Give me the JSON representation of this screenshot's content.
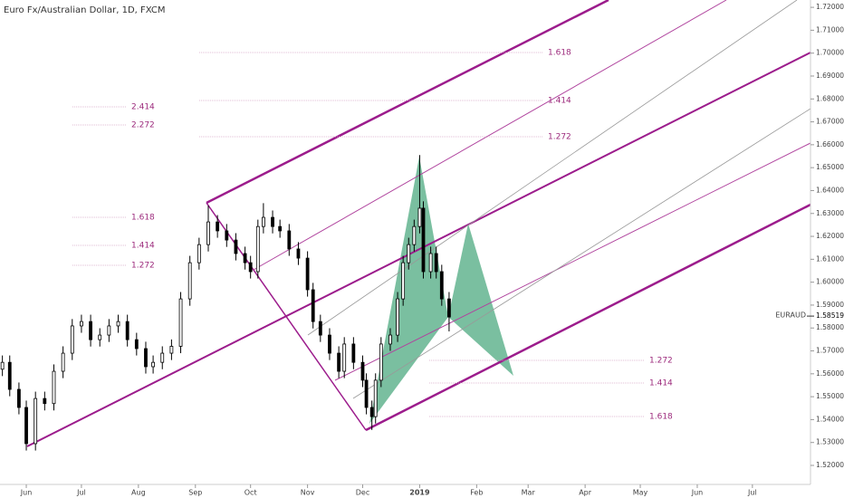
{
  "chart_data": {
    "type": "candlestick",
    "title": "Euro Fx/Australian Dollar, 1D, FXCM",
    "symbol": "EURAUD",
    "last_price": 1.58519,
    "x": [
      -13,
      -9,
      -4,
      0,
      5,
      10,
      15,
      20,
      25,
      30,
      35,
      40,
      45,
      50,
      55,
      60,
      65,
      69,
      74,
      79,
      84,
      89,
      94,
      99,
      104,
      109,
      114,
      119,
      122,
      126,
      129,
      134,
      138,
      143,
      148,
      153,
      156,
      160,
      165,
      170,
      173,
      178,
      183,
      185,
      188,
      190,
      193,
      198,
      202,
      205,
      208,
      211,
      214,
      216,
      220,
      223,
      226,
      230
    ],
    "open": [
      1.562,
      1.565,
      1.5532,
      1.5453,
      1.5295,
      1.5492,
      1.547,
      1.5611,
      1.569,
      1.5809,
      1.5828,
      1.5749,
      1.5769,
      1.5809,
      1.5828,
      1.5749,
      1.571,
      1.5631,
      1.565,
      1.569,
      1.572,
      1.5927,
      1.6085,
      1.6164,
      1.6263,
      1.6224,
      1.6184,
      1.6125,
      1.6085,
      1.6046,
      1.6243,
      1.6283,
      1.6243,
      1.6224,
      1.6145,
      1.6105,
      1.5967,
      1.5828,
      1.5769,
      1.569,
      1.5611,
      1.573,
      1.565,
      1.5572,
      1.5453,
      1.5413,
      1.5572,
      1.573,
      1.5769,
      1.5927,
      1.6085,
      1.6164,
      1.6243,
      1.6323,
      1.6046,
      1.6125,
      1.6046,
      1.5927
    ],
    "high": [
      1.568,
      1.568,
      1.5562,
      1.5483,
      1.5522,
      1.5522,
      1.5641,
      1.572,
      1.5839,
      1.5858,
      1.5858,
      1.5799,
      1.5839,
      1.5858,
      1.5858,
      1.5779,
      1.574,
      1.568,
      1.572,
      1.575,
      1.5957,
      1.6115,
      1.6194,
      1.6335,
      1.6293,
      1.6254,
      1.6214,
      1.6155,
      1.6115,
      1.6273,
      1.6345,
      1.6313,
      1.6273,
      1.6254,
      1.6175,
      1.6135,
      1.5997,
      1.5858,
      1.5799,
      1.572,
      1.576,
      1.576,
      1.568,
      1.5602,
      1.5483,
      1.5602,
      1.576,
      1.5799,
      1.5957,
      1.6115,
      1.6194,
      1.6273,
      1.6555,
      1.6353,
      1.6155,
      1.6155,
      1.6076,
      1.5957
    ],
    "low": [
      1.559,
      1.5502,
      1.5423,
      1.5265,
      1.5265,
      1.544,
      1.544,
      1.5581,
      1.566,
      1.5779,
      1.5719,
      1.5719,
      1.5739,
      1.5779,
      1.5719,
      1.568,
      1.5601,
      1.5601,
      1.562,
      1.566,
      1.569,
      1.5897,
      1.6055,
      1.6134,
      1.6194,
      1.6154,
      1.6095,
      1.6055,
      1.6016,
      1.6016,
      1.6213,
      1.6213,
      1.6194,
      1.6115,
      1.6075,
      1.5937,
      1.5798,
      1.5739,
      1.566,
      1.5581,
      1.5581,
      1.562,
      1.5542,
      1.5423,
      1.5355,
      1.5383,
      1.5542,
      1.57,
      1.5739,
      1.5897,
      1.6055,
      1.6134,
      1.6213,
      1.6016,
      1.6016,
      1.6016,
      1.5897,
      1.5785
    ],
    "close": [
      1.565,
      1.5532,
      1.5453,
      1.5295,
      1.5492,
      1.547,
      1.5611,
      1.569,
      1.5809,
      1.5828,
      1.5749,
      1.5769,
      1.5809,
      1.5828,
      1.5749,
      1.571,
      1.5631,
      1.565,
      1.569,
      1.572,
      1.5927,
      1.6085,
      1.6164,
      1.6263,
      1.6224,
      1.6184,
      1.6125,
      1.6085,
      1.6046,
      1.6243,
      1.6283,
      1.6243,
      1.6224,
      1.6145,
      1.6105,
      1.5967,
      1.5828,
      1.5769,
      1.569,
      1.5611,
      1.573,
      1.565,
      1.5572,
      1.5453,
      1.5413,
      1.5572,
      1.573,
      1.5769,
      1.5927,
      1.6085,
      1.6164,
      1.6243,
      1.6323,
      1.6046,
      1.6125,
      1.6046,
      1.5927,
      1.5848
    ],
    "up_color": "#ffffff",
    "down_color": "#000000",
    "xlim": [
      -14.3,
      426.6
    ],
    "xticks": [
      {
        "value": 0,
        "label": "Jun"
      },
      {
        "value": 30,
        "label": "Jul"
      },
      {
        "value": 61,
        "label": "Aug"
      },
      {
        "value": 92,
        "label": "Sep"
      },
      {
        "value": 122,
        "label": "Oct"
      },
      {
        "value": 153,
        "label": "Nov"
      },
      {
        "value": 183,
        "label": "Dec"
      },
      {
        "value": 214,
        "label": "2019"
      },
      {
        "value": 245,
        "label": "Feb"
      },
      {
        "value": 273,
        "label": "Mar"
      },
      {
        "value": 304,
        "label": "Apr"
      },
      {
        "value": 334,
        "label": "May"
      },
      {
        "value": 365,
        "label": "Jun"
      },
      {
        "value": 395,
        "label": "Jul"
      }
    ],
    "ylim": [
      1.5117,
      1.7232
    ],
    "yticks": [
      {
        "value": 1.52,
        "label": "1.52000"
      },
      {
        "value": 1.53,
        "label": "1.53000"
      },
      {
        "value": 1.54,
        "label": "1.54000"
      },
      {
        "value": 1.55,
        "label": "1.55000"
      },
      {
        "value": 1.56,
        "label": "1.56000"
      },
      {
        "value": 1.57,
        "label": "1.57000"
      },
      {
        "value": 1.58,
        "label": "1.58000"
      },
      {
        "value": 1.59,
        "label": "1.59000"
      },
      {
        "value": 1.6,
        "label": "1.60000"
      },
      {
        "value": 1.61,
        "label": "1.61000"
      },
      {
        "value": 1.62,
        "label": "1.62000"
      },
      {
        "value": 1.63,
        "label": "1.63000"
      },
      {
        "value": 1.64,
        "label": "1.64000"
      },
      {
        "value": 1.65,
        "label": "1.65000"
      },
      {
        "value": 1.66,
        "label": "1.66000"
      },
      {
        "value": 1.67,
        "label": "1.67000"
      },
      {
        "value": 1.68,
        "label": "1.68000"
      },
      {
        "value": 1.69,
        "label": "1.69000"
      },
      {
        "value": 1.7,
        "label": "1.70000"
      },
      {
        "value": 1.71,
        "label": "1.71000"
      },
      {
        "value": 1.72,
        "label": "1.72000"
      }
    ],
    "annotations": [
      "2.414",
      "2.272",
      "1.618",
      "1.414",
      "1.272",
      "1.618",
      "1.414",
      "1.272",
      "1.272",
      "1.414",
      "1.618"
    ]
  }
}
